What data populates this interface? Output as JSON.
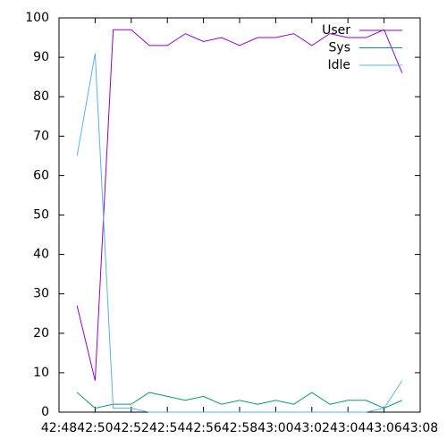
{
  "chart_data": {
    "type": "line",
    "x": [
      49,
      50,
      51,
      52,
      53,
      54,
      55,
      56,
      57,
      58,
      59,
      60,
      61,
      62,
      63,
      64,
      65,
      66,
      67
    ],
    "series": [
      {
        "name": "User",
        "color": "#9400d3",
        "values": [
          27,
          8,
          97,
          97,
          93,
          93,
          96,
          94,
          95,
          93,
          95,
          95,
          96,
          93,
          96,
          95,
          95,
          97,
          86
        ]
      },
      {
        "name": "Sys",
        "color": "#009e73",
        "values": [
          5,
          1,
          2,
          2,
          5,
          4,
          3,
          4,
          2,
          3,
          2,
          3,
          2,
          5,
          2,
          3,
          3,
          1,
          3
        ]
      },
      {
        "name": "Idle",
        "color": "#56b4e9",
        "values": [
          65,
          91,
          1,
          1,
          0,
          0,
          0,
          0,
          0,
          0,
          0,
          0,
          0,
          0,
          0,
          0,
          0,
          1,
          8
        ]
      }
    ],
    "xlim": [
      48,
      68
    ],
    "xticks": [
      {
        "value": 48,
        "label": "42:48"
      },
      {
        "value": 50,
        "label": "42:50"
      },
      {
        "value": 52,
        "label": "42:52"
      },
      {
        "value": 54,
        "label": "42:54"
      },
      {
        "value": 56,
        "label": "42:56"
      },
      {
        "value": 58,
        "label": "42:58"
      },
      {
        "value": 60,
        "label": "43:00"
      },
      {
        "value": 62,
        "label": "43:02"
      },
      {
        "value": 64,
        "label": "43:04"
      },
      {
        "value": 66,
        "label": "43:06"
      },
      {
        "value": 68,
        "label": "43:08"
      }
    ],
    "ylim": [
      0,
      100
    ],
    "yticks": [
      0,
      10,
      20,
      30,
      40,
      50,
      60,
      70,
      80,
      90,
      100
    ],
    "legend": "top-right"
  }
}
